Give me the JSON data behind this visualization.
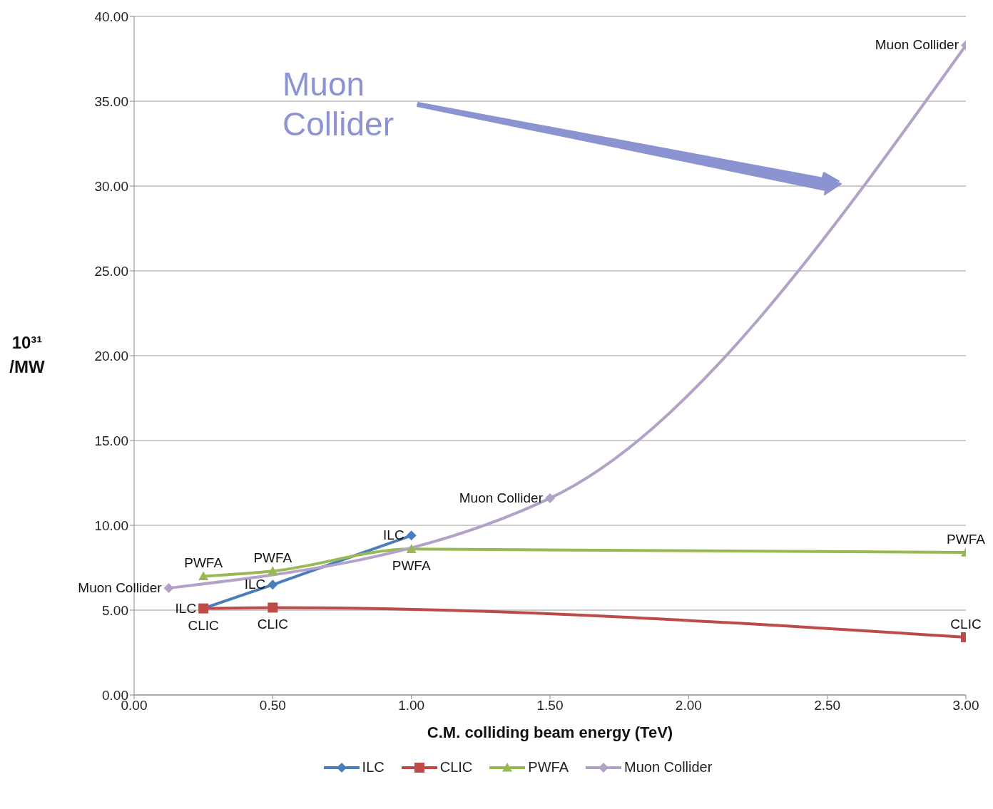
{
  "chart_data": {
    "type": "line",
    "xlabel": "C.M. colliding beam energy (TeV)",
    "ylabel": "10³¹ /MW",
    "xlim": [
      0,
      3
    ],
    "xticks": [
      {
        "value": 0,
        "label": "0.00"
      },
      {
        "value": 0.5,
        "label": "0.50"
      },
      {
        "value": 1,
        "label": "1.00"
      },
      {
        "value": 1.5,
        "label": "1.50"
      },
      {
        "value": 2,
        "label": "2.00"
      },
      {
        "value": 2.5,
        "label": "2.50"
      },
      {
        "value": 3,
        "label": "3.00"
      }
    ],
    "ylim": [
      0,
      40
    ],
    "yticks": [
      {
        "value": 0,
        "label": "0.00"
      },
      {
        "value": 5,
        "label": "5.00"
      },
      {
        "value": 10,
        "label": "10.00"
      },
      {
        "value": 15,
        "label": "15.00"
      },
      {
        "value": 20,
        "label": "20.00"
      },
      {
        "value": 25,
        "label": "25.00"
      },
      {
        "value": 30,
        "label": "30.00"
      },
      {
        "value": 35,
        "label": "35.00"
      },
      {
        "value": 40,
        "label": "40.00"
      }
    ],
    "grid": "y",
    "legend": "bottom",
    "series": [
      {
        "name": "ILC",
        "color": "#4a7ebb",
        "marker": "diamond",
        "x": [
          0.25,
          0.5,
          1.0
        ],
        "values": [
          5.1,
          6.5,
          9.4
        ],
        "value_labels": [
          "ILC",
          "ILC",
          "ILC"
        ]
      },
      {
        "name": "CLIC",
        "color": "#be4b48",
        "marker": "square",
        "x": [
          0.25,
          0.5,
          3.0
        ],
        "values": [
          5.1,
          5.15,
          3.4
        ],
        "value_labels": [
          "CLIC",
          "CLIC",
          "CLIC"
        ]
      },
      {
        "name": "PWFA",
        "color": "#98b954",
        "marker": "triangle",
        "x": [
          0.25,
          0.5,
          1.0,
          3.0
        ],
        "values": [
          7.0,
          7.3,
          8.6,
          8.4
        ],
        "value_labels": [
          "PWFA",
          "PWFA",
          "PWFA",
          "PWFA"
        ]
      },
      {
        "name": "Muon Collider",
        "color": "#b3a2c7",
        "marker": "diamond",
        "x": [
          0.125,
          1.5,
          3.0
        ],
        "values": [
          6.3,
          11.6,
          38.3
        ],
        "value_labels": [
          "Muon Collider",
          "Muon Collider",
          "Muon Collider"
        ]
      }
    ],
    "annotations": [
      "Muon Collider"
    ]
  }
}
